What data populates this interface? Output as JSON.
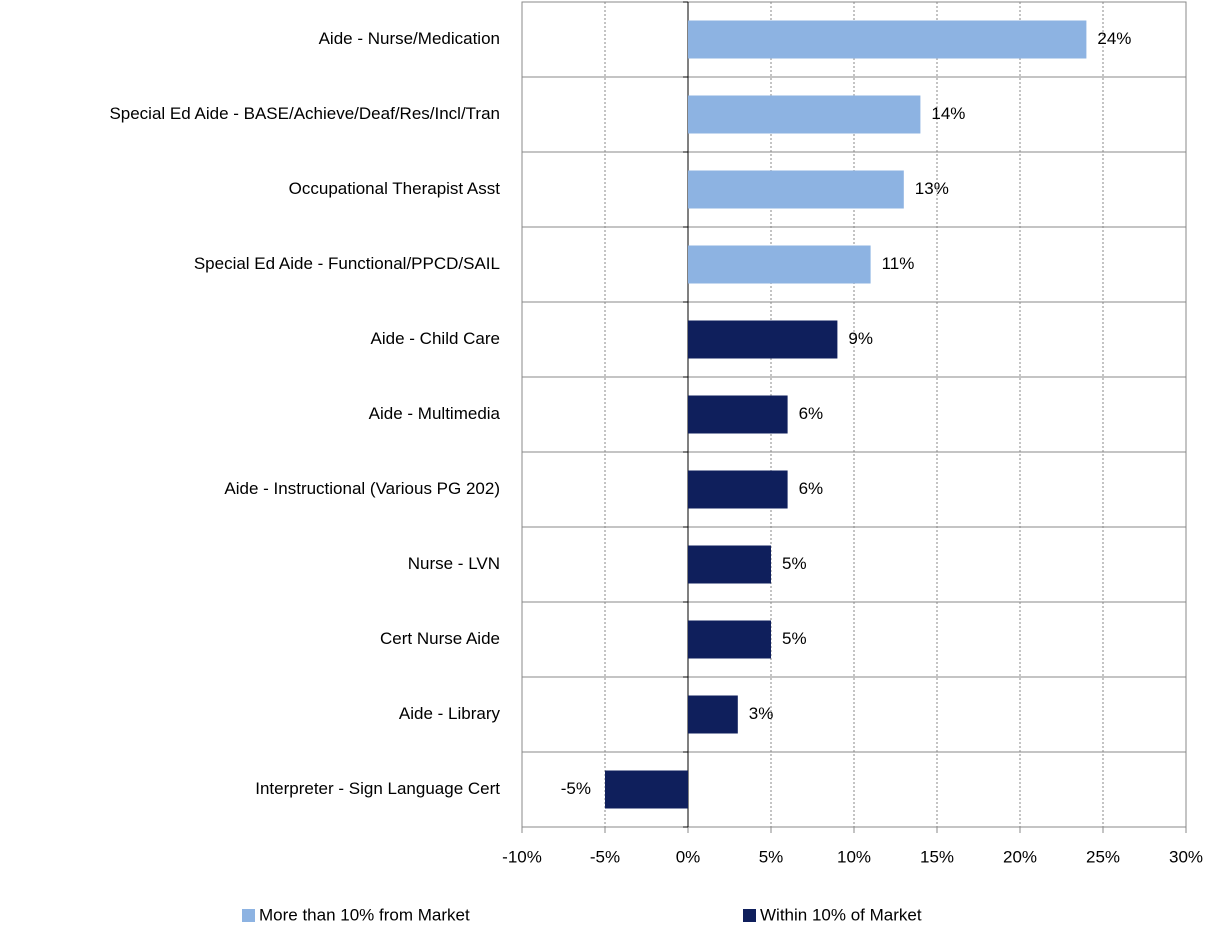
{
  "chart_data": {
    "type": "hbar",
    "categories": [
      "Aide - Nurse/Medication",
      "Special Ed Aide - BASE/Achieve/Deaf/Res/Incl/Tran",
      "Occupational Therapist Asst",
      "Special Ed Aide - Functional/PPCD/SAIL",
      "Aide - Child Care",
      "Aide - Multimedia",
      "Aide - Instructional (Various PG 202)",
      "Nurse - LVN",
      "Cert Nurse Aide",
      "Aide - Library",
      "Interpreter - Sign Language Cert"
    ],
    "series": [
      {
        "name": "More than 10% from Market",
        "color": "#8db3e2",
        "values": [
          24,
          14,
          13,
          11,
          null,
          null,
          null,
          null,
          null,
          null,
          null
        ],
        "value_labels": [
          "24%",
          "14%",
          "13%",
          "11%",
          null,
          null,
          null,
          null,
          null,
          null,
          null
        ]
      },
      {
        "name": "Within 10% of Market",
        "color": "#0f1f5c",
        "values": [
          null,
          null,
          null,
          null,
          9,
          6,
          6,
          5,
          5,
          3,
          -5
        ],
        "value_labels": [
          null,
          null,
          null,
          null,
          "9%",
          "6%",
          "6%",
          "5%",
          "5%",
          "3%",
          "-5%"
        ]
      }
    ],
    "xlim": [
      -10,
      30
    ],
    "xticks": [
      {
        "value": -10,
        "label": "-10%"
      },
      {
        "value": -5,
        "label": "-5%"
      },
      {
        "value": 0,
        "label": "0%"
      },
      {
        "value": 5,
        "label": "5%"
      },
      {
        "value": 10,
        "label": "10%"
      },
      {
        "value": 15,
        "label": "15%"
      },
      {
        "value": 20,
        "label": "20%"
      },
      {
        "value": 25,
        "label": "25%"
      },
      {
        "value": 30,
        "label": "30%"
      }
    ],
    "grid": true,
    "legend": "bottom"
  }
}
